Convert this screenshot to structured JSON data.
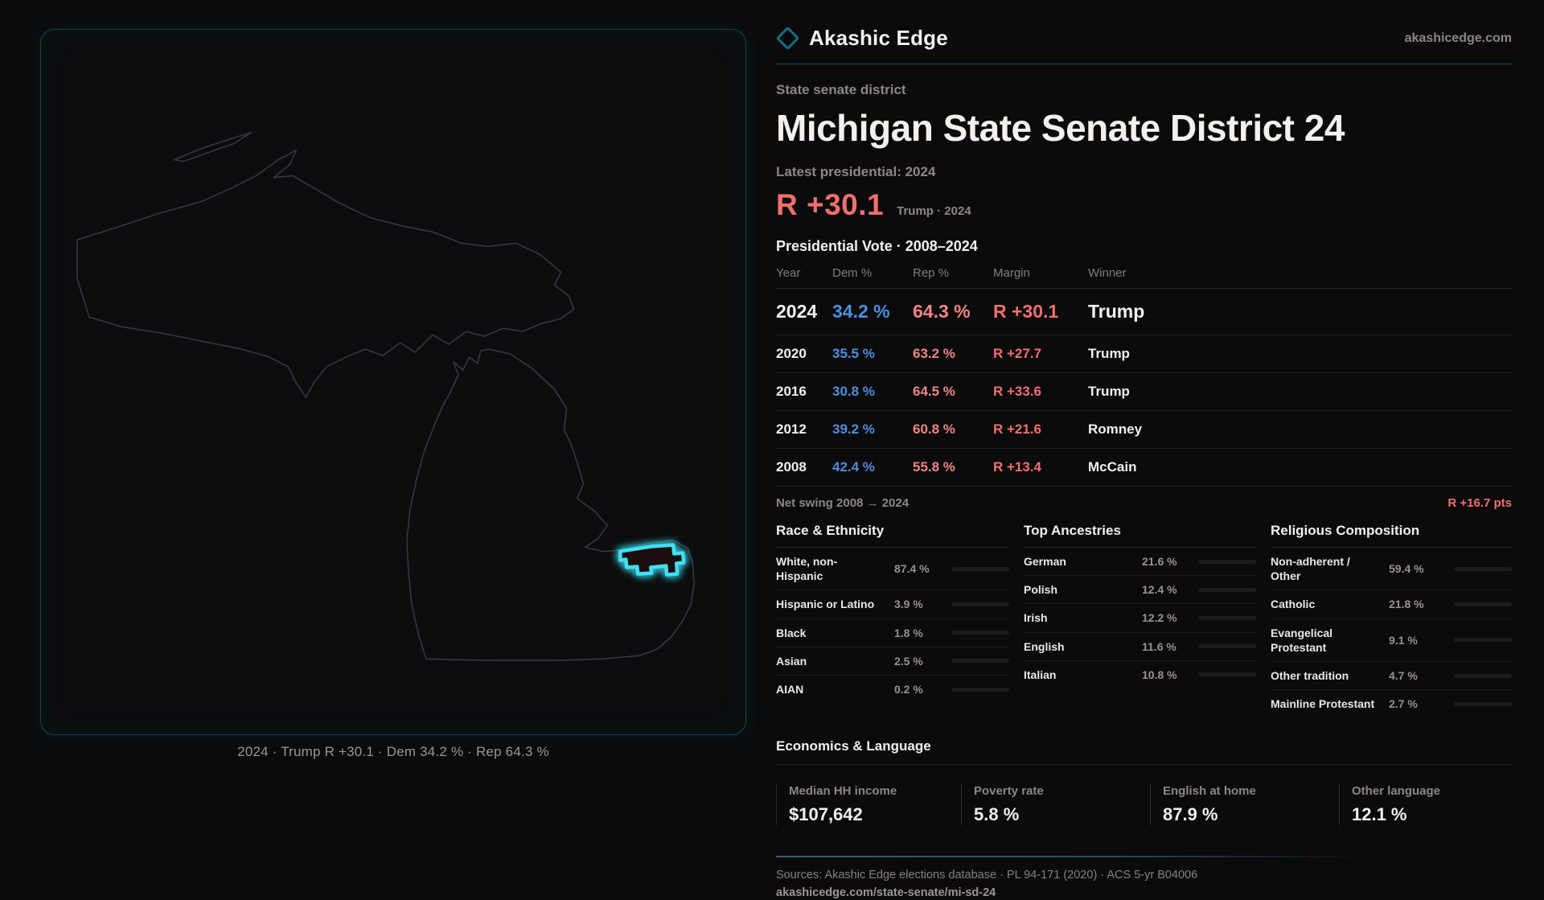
{
  "colors": {
    "accent_cyan": "#3fdff2",
    "rep_red": "#f1706d",
    "dem_blue": "#4e8fe0",
    "bar_steel": "#9dadc9",
    "teal_border": "#16444f"
  },
  "brand": {
    "name": "Akashic Edge",
    "site": "akashicedge.com"
  },
  "page": {
    "kicker": "State senate district",
    "title": "Michigan State Senate District 24",
    "latest_label": "Latest presidential: 2024",
    "headline_margin": "R +30.1",
    "headline_context": "Trump · 2024"
  },
  "map": {
    "caption": "2024 · Trump R +30.1 · Dem 34.2 % · Rep 64.3 %"
  },
  "vote_table": {
    "title": "Presidential Vote · 2008–2024",
    "columns": {
      "year": "Year",
      "dem": "Dem %",
      "rep": "Rep %",
      "margin": "Margin",
      "winner": "Winner"
    },
    "rows": [
      {
        "year": "2024",
        "dem": "34.2 %",
        "rep": "64.3 %",
        "margin": "R +30.1",
        "winner": "Trump"
      },
      {
        "year": "2020",
        "dem": "35.5 %",
        "rep": "63.2 %",
        "margin": "R +27.7",
        "winner": "Trump"
      },
      {
        "year": "2016",
        "dem": "30.8 %",
        "rep": "64.5 %",
        "margin": "R +33.6",
        "winner": "Trump"
      },
      {
        "year": "2012",
        "dem": "39.2 %",
        "rep": "60.8 %",
        "margin": "R +21.6",
        "winner": "Romney"
      },
      {
        "year": "2008",
        "dem": "42.4 %",
        "rep": "55.8 %",
        "margin": "R +13.4",
        "winner": "McCain"
      }
    ],
    "net_swing_label": "Net swing 2008 → 2024",
    "net_swing_value": "R +16.7 pts"
  },
  "demographics": {
    "race": {
      "title": "Race & Ethnicity",
      "rows": [
        {
          "label": "White, non-\nHispanic",
          "value": "87.4 %",
          "pct": 87.4,
          "color": "#9dadc9"
        },
        {
          "label": "Hispanic or Latino",
          "value": "3.9 %",
          "pct": 3.9,
          "color": "#e5a23c"
        },
        {
          "label": "Black",
          "value": "1.8 %",
          "pct": 1.8,
          "color": "#9b8df2"
        },
        {
          "label": "Asian",
          "value": "2.5 %",
          "pct": 2.5,
          "color": "#3dbd8a"
        },
        {
          "label": "AIAN",
          "value": "0.2 %",
          "pct": 0.2,
          "color": "#6f6f74"
        }
      ]
    },
    "ancestries": {
      "title": "Top Ancestries",
      "rows": [
        {
          "label": "German",
          "value": "21.6 %",
          "pct": 21.6,
          "color": "#9dadc9"
        },
        {
          "label": "Polish",
          "value": "12.4 %",
          "pct": 12.4,
          "color": "#9dadc9"
        },
        {
          "label": "Irish",
          "value": "12.2 %",
          "pct": 12.2,
          "color": "#9dadc9"
        },
        {
          "label": "English",
          "value": "11.6 %",
          "pct": 11.6,
          "color": "#9dadc9"
        },
        {
          "label": "Italian",
          "value": "10.8 %",
          "pct": 10.8,
          "color": "#9dadc9"
        }
      ]
    },
    "religion": {
      "title": "Religious Composition",
      "rows": [
        {
          "label": "Non-adherent /\nOther",
          "value": "59.4 %",
          "pct": 59.4,
          "color": "#9dadc9"
        },
        {
          "label": "Catholic",
          "value": "21.8 %",
          "pct": 21.8,
          "color": "#e3c23f"
        },
        {
          "label": "Evangelical\nProtestant",
          "value": "9.1 %",
          "pct": 9.1,
          "color": "#e8827f"
        },
        {
          "label": "Other tradition",
          "value": "4.7 %",
          "pct": 4.7,
          "color": "#c9cdd4"
        },
        {
          "label": "Mainline Protestant",
          "value": "2.7 %",
          "pct": 2.7,
          "color": "#5b8fd4"
        }
      ]
    }
  },
  "economics": {
    "title": "Economics & Language",
    "stats": [
      {
        "label": "Median HH income",
        "value": "$107,642"
      },
      {
        "label": "Poverty rate",
        "value": "5.8 %"
      },
      {
        "label": "English at home",
        "value": "87.9 %"
      },
      {
        "label": "Other language",
        "value": "12.1 %"
      }
    ]
  },
  "footer": {
    "sources": "Sources: Akashic Edge elections database · PL 94-171 (2020) · ACS 5-yr B04006",
    "permalink": "akashicedge.com/state-senate/mi-sd-24"
  }
}
